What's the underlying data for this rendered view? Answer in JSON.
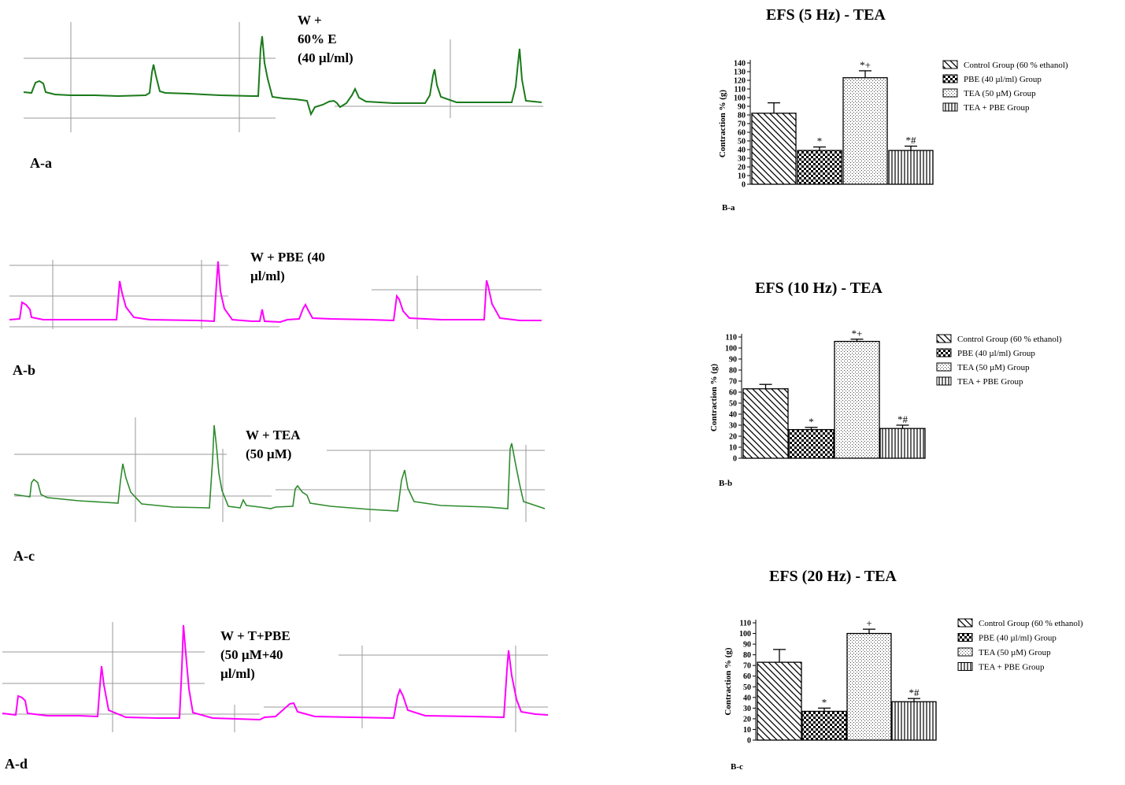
{
  "traces": [
    {
      "id": "A-a",
      "panel_label": "A-a",
      "label": "W +\n60% E\n(40 µl/ml)",
      "color": "#1a7a1a"
    },
    {
      "id": "A-b",
      "panel_label": "A-b",
      "label": "W + PBE (40\nµl/ml)",
      "color": "#ff00ff"
    },
    {
      "id": "A-c",
      "panel_label": "A-c",
      "label": "W + TEA\n(50 µM)",
      "color": "#2e8b2e"
    },
    {
      "id": "A-d",
      "panel_label": "A-d",
      "label": "W + T+PBE\n(50 µM+40\nµl/ml)",
      "color": "#ff00ff"
    }
  ],
  "legend_entries": [
    "Control Group (60 % ethanol)",
    "PBE (40 µl/ml) Group",
    "TEA (50 µM) Group",
    "TEA + PBE Group"
  ],
  "chart_data": [
    {
      "type": "bar",
      "title": "EFS (5 Hz) - TEA",
      "panel_label": "B-a",
      "ylabel": "Contraction  % (g)",
      "xlabel": "",
      "categories": [
        "Control Group (60 % ethanol)",
        "PBE (40 µl/ml) Group",
        "TEA (50 µM) Group",
        "TEA + PBE Group"
      ],
      "values": [
        82,
        39,
        123,
        39
      ],
      "errors": [
        12,
        4,
        8,
        5
      ],
      "annotations": [
        "",
        "*",
        "*+",
        "*#"
      ],
      "ylim": [
        0,
        140
      ],
      "yticks": [
        0,
        10,
        20,
        30,
        40,
        50,
        60,
        70,
        80,
        90,
        100,
        110,
        120,
        130,
        140
      ],
      "legend": "right"
    },
    {
      "type": "bar",
      "title": "EFS (10 Hz) - TEA",
      "panel_label": "B-b",
      "ylabel": "Contraction  %  (g)",
      "xlabel": "",
      "categories": [
        "Control Group (60 % ethanol)",
        "PBE (40 µl/ml) Group",
        "TEA (50 µM) Group",
        "TEA + PBE Group"
      ],
      "values": [
        63,
        26,
        106,
        27
      ],
      "errors": [
        4,
        2,
        2,
        3
      ],
      "annotations": [
        "",
        "*",
        "*+",
        "*#"
      ],
      "ylim": [
        0,
        110
      ],
      "yticks": [
        0,
        10,
        20,
        30,
        40,
        50,
        60,
        70,
        80,
        90,
        100,
        110
      ],
      "legend": "right"
    },
    {
      "type": "bar",
      "title": "EFS (20 Hz) - TEA",
      "panel_label": "B-c",
      "ylabel": "Contraction  %  (g)",
      "xlabel": "",
      "categories": [
        "Control Group (60 % ethanol)",
        "PBE (40 µl/ml) Group",
        "TEA (50 µM) Group",
        "TEA + PBE Group"
      ],
      "values": [
        73,
        27,
        100,
        36
      ],
      "errors": [
        12,
        3,
        4,
        3
      ],
      "annotations": [
        "",
        "*",
        "+",
        "*#"
      ],
      "ylim": [
        0,
        110
      ],
      "yticks": [
        0,
        10,
        20,
        30,
        40,
        50,
        60,
        70,
        80,
        90,
        100,
        110
      ],
      "legend": "right"
    }
  ]
}
